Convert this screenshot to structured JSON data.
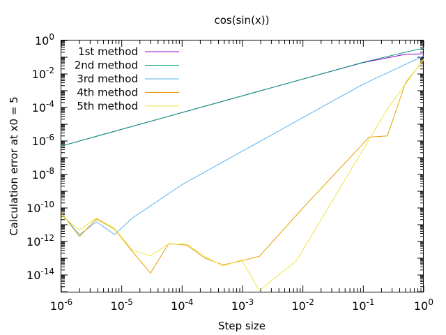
{
  "chart_data": {
    "type": "line",
    "title": "cos(sin(x))",
    "xlabel": "Step size",
    "ylabel": "Calculation error at x0 = 5",
    "x_scale": "log",
    "y_scale": "log",
    "xlim": [
      1e-06,
      1
    ],
    "ylim": [
      1e-15,
      1
    ],
    "x_ticks": [
      {
        "value": 1e-06,
        "base": "10",
        "exp": "-6"
      },
      {
        "value": 1e-05,
        "base": "10",
        "exp": "-5"
      },
      {
        "value": 0.0001,
        "base": "10",
        "exp": "-4"
      },
      {
        "value": 0.001,
        "base": "10",
        "exp": "-3"
      },
      {
        "value": 0.01,
        "base": "10",
        "exp": "-2"
      },
      {
        "value": 0.1,
        "base": "10",
        "exp": "-1"
      },
      {
        "value": 1,
        "base": "10",
        "exp": "0"
      }
    ],
    "y_ticks": [
      {
        "value": 1,
        "base": "10",
        "exp": "0"
      },
      {
        "value": 0.01,
        "base": "10",
        "exp": "-2"
      },
      {
        "value": 0.0001,
        "base": "10",
        "exp": "-4"
      },
      {
        "value": 1e-06,
        "base": "10",
        "exp": "-6"
      },
      {
        "value": 1e-08,
        "base": "10",
        "exp": "-8"
      },
      {
        "value": 1e-10,
        "base": "10",
        "exp": "-10"
      },
      {
        "value": 1e-12,
        "base": "10",
        "exp": "-12"
      },
      {
        "value": 1e-14,
        "base": "10",
        "exp": "-14"
      }
    ],
    "legend_position": "top-left",
    "grid": false,
    "series": [
      {
        "name": "1st method",
        "color": "#9400d3",
        "points": [
          [
            1e-06,
            5e-07
          ],
          [
            1e-05,
            5e-06
          ],
          [
            0.0001,
            5e-05
          ],
          [
            0.001,
            0.0005
          ],
          [
            0.01,
            0.005
          ],
          [
            0.1,
            0.048
          ],
          [
            0.5,
            0.15
          ],
          [
            1,
            0.16
          ]
        ]
      },
      {
        "name": "2nd method",
        "color": "#009e73",
        "points": [
          [
            1e-06,
            5e-07
          ],
          [
            1e-05,
            5e-06
          ],
          [
            0.0001,
            5e-05
          ],
          [
            0.001,
            0.0005
          ],
          [
            0.01,
            0.005
          ],
          [
            0.1,
            0.05
          ],
          [
            0.5,
            0.2
          ],
          [
            1,
            0.35
          ]
        ]
      },
      {
        "name": "3rd method",
        "color": "#56b4e9",
        "points": [
          [
            1e-06,
            5e-11
          ],
          [
            2e-06,
            2.5e-12
          ],
          [
            3.8e-06,
            1.5e-11
          ],
          [
            7.6e-06,
            2.6e-12
          ],
          [
            1.5e-05,
            2.5e-11
          ],
          [
            0.0001,
            2.5e-09
          ],
          [
            0.001,
            2.5e-07
          ],
          [
            0.01,
            2.5e-05
          ],
          [
            0.1,
            0.0025
          ],
          [
            1,
            0.12
          ]
        ]
      },
      {
        "name": "4th method",
        "color": "#e69f00",
        "points": [
          [
            1e-06,
            5e-11
          ],
          [
            2e-06,
            2e-12
          ],
          [
            3.8e-06,
            2.2e-11
          ],
          [
            7.6e-06,
            5.5e-12
          ],
          [
            1.5e-05,
            2.5e-13
          ],
          [
            3e-05,
            1.3e-14
          ],
          [
            6e-05,
            7.5e-13
          ],
          [
            0.00012,
            6e-13
          ],
          [
            0.00024,
            1e-13
          ],
          [
            0.00048,
            4e-14
          ],
          [
            0.00096,
            7e-14
          ],
          [
            0.0019,
            1.3e-13
          ],
          [
            0.01,
            1e-10
          ],
          [
            0.125,
            1.7e-06
          ],
          [
            0.25,
            2e-06
          ],
          [
            0.5,
            0.003
          ],
          [
            1,
            0.07
          ]
        ]
      },
      {
        "name": "5th method",
        "color": "#f0e442",
        "points": [
          [
            1e-06,
            3.5e-11
          ],
          [
            2e-06,
            5e-12
          ],
          [
            3.8e-06,
            2.5e-11
          ],
          [
            7.6e-06,
            6e-12
          ],
          [
            1.5e-05,
            3e-13
          ],
          [
            3e-05,
            1.4e-13
          ],
          [
            6e-05,
            7e-13
          ],
          [
            0.00012,
            7e-13
          ],
          [
            0.00024,
            1.2e-13
          ],
          [
            0.00048,
            3.5e-14
          ],
          [
            0.00096,
            8e-14
          ],
          [
            0.0019,
            1.2e-15
          ],
          [
            0.0078,
            7e-14
          ],
          [
            0.25,
            8e-05
          ],
          [
            1,
            0.08
          ]
        ]
      }
    ]
  }
}
